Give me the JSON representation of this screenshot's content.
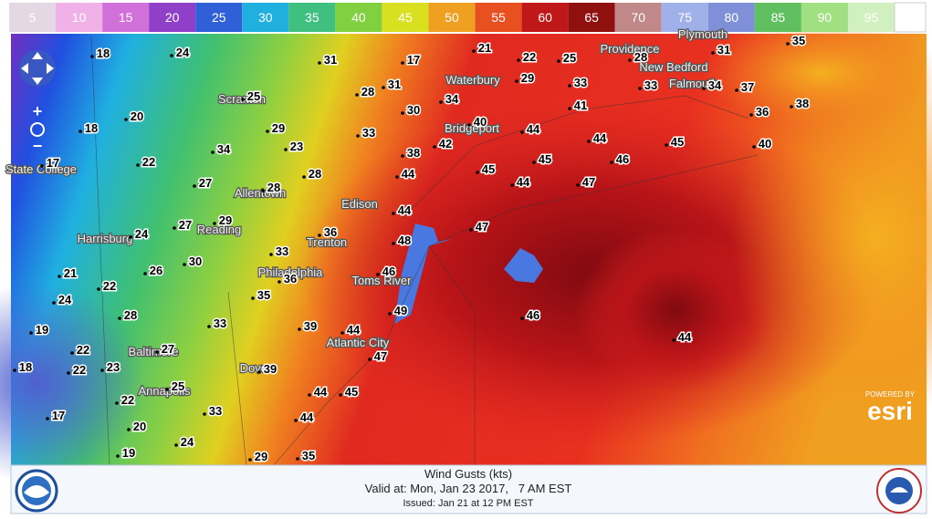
{
  "legend": {
    "labels": [
      "5",
      "10",
      "15",
      "20",
      "25",
      "30",
      "35",
      "40",
      "45",
      "50",
      "55",
      "60",
      "65",
      "70",
      "75",
      "80",
      "85",
      "90",
      "95"
    ],
    "colors": [
      "#e3d8e3",
      "#f0b0e8",
      "#d070d8",
      "#9040c8",
      "#3060d8",
      "#20b0e0",
      "#40c080",
      "#80d040",
      "#d8e020",
      "#f0a020",
      "#e85020",
      "#c01818",
      "#901010",
      "#c08888",
      "#a0b0e8",
      "#8090d8",
      "#60c060",
      "#a0e080",
      "#d0f0c0"
    ]
  },
  "stations": [
    18,
    24,
    20,
    18,
    17,
    22,
    25,
    29,
    34,
    23,
    27,
    28,
    28,
    31,
    28,
    31,
    17,
    21,
    22,
    25,
    29,
    34,
    30,
    33,
    38,
    42,
    40,
    33,
    41,
    44,
    44,
    45,
    40,
    36,
    38,
    37,
    34,
    33,
    28,
    31,
    35,
    45,
    45,
    46,
    44,
    44,
    47,
    44,
    47,
    48,
    36,
    29,
    27,
    24,
    33,
    30,
    26,
    21,
    22,
    24,
    36,
    35,
    46,
    49,
    46,
    44,
    28,
    33,
    39,
    44,
    47,
    19,
    22,
    27,
    18,
    22,
    23,
    39,
    25,
    44,
    45,
    22,
    33,
    17,
    44,
    20,
    24,
    19,
    29,
    35
  ],
  "cities": [
    "Scranton",
    "Allentown",
    "Reading",
    "Harrisburg",
    "Philadelphia",
    "Trenton",
    "Edison",
    "Bridgeport",
    "Waterbury",
    "Providence",
    "New Bedford",
    "Falmouth",
    "Plymouth",
    "Toms River",
    "Atlantic City",
    "Dover",
    "Baltimore",
    "Annapolis",
    "State College"
  ],
  "footer": {
    "title": "Wind Gusts (kts)",
    "valid": "Valid at: Mon, Jan 23 2017,   7 AM EST",
    "issued": "Issued: Jan 21 at 12 PM EST"
  },
  "attribution": {
    "powered": "POWERED BY",
    "brand": "esri"
  }
}
